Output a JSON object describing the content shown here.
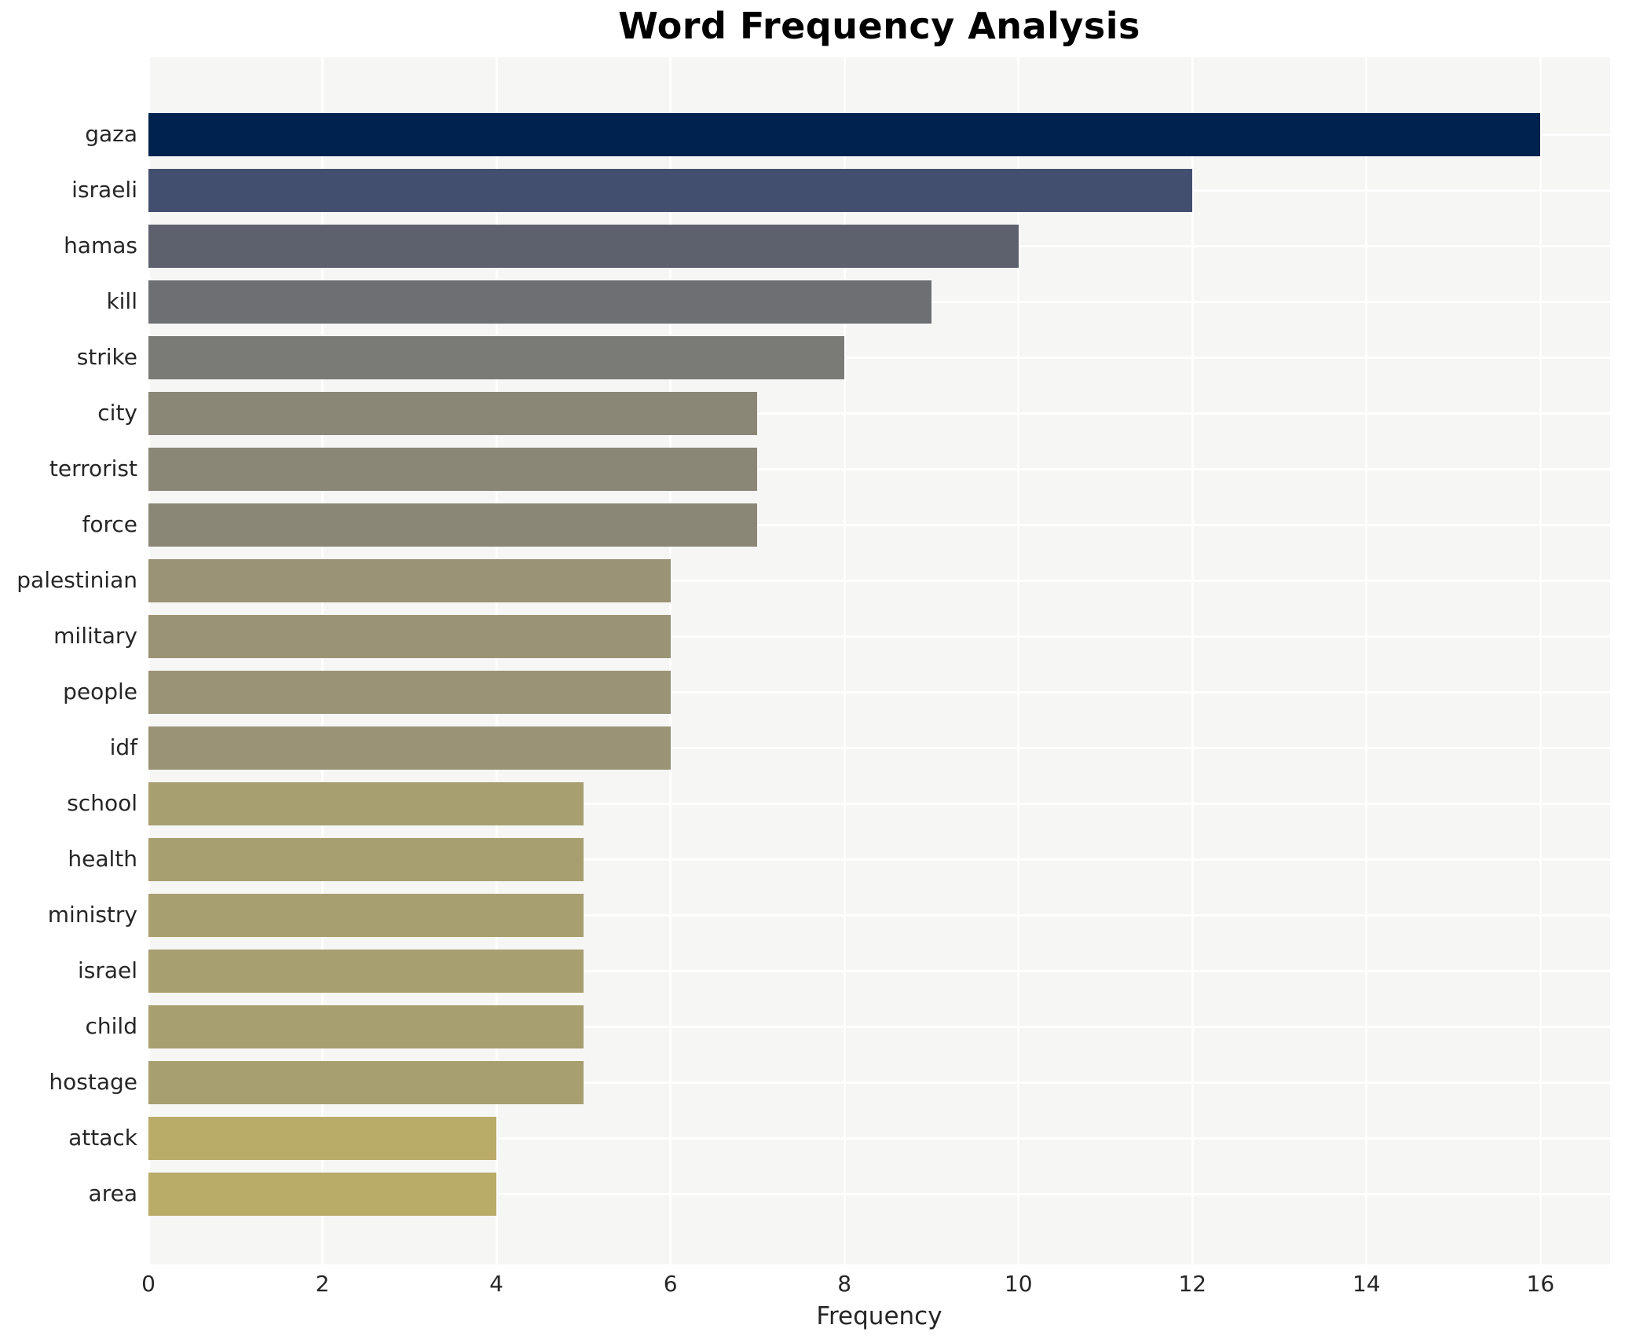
{
  "title": "Word Frequency Analysis",
  "chart_data": {
    "type": "bar",
    "orientation": "horizontal",
    "title": "Word Frequency Analysis",
    "xlabel": "Frequency",
    "ylabel": "",
    "categories": [
      "gaza",
      "israeli",
      "hamas",
      "kill",
      "strike",
      "city",
      "terrorist",
      "force",
      "palestinian",
      "military",
      "people",
      "idf",
      "school",
      "health",
      "ministry",
      "israel",
      "child",
      "hostage",
      "attack",
      "area"
    ],
    "values": [
      16,
      12,
      10,
      9,
      8,
      7,
      7,
      7,
      6,
      6,
      6,
      6,
      5,
      5,
      5,
      5,
      5,
      5,
      4,
      4
    ],
    "bar_colors": [
      "#00224e",
      "#434f6e",
      "#5d616e",
      "#6e6f72",
      "#7a7a76",
      "#8a8777",
      "#8a8777",
      "#8a8777",
      "#9b9375",
      "#9b9375",
      "#9b9375",
      "#9b9375",
      "#a89f71",
      "#a89f71",
      "#a89f71",
      "#a89f71",
      "#a89f71",
      "#a89f71",
      "#b9ac68",
      "#b9ac68"
    ],
    "xlim": [
      0,
      16.8
    ],
    "xticks": [
      0,
      2,
      4,
      6,
      8,
      10,
      12,
      14,
      16
    ],
    "grid": "white gridlines on light gray panel, x and y",
    "legend_position": "none"
  },
  "style": {
    "page_background": "#ffffff",
    "plot_background": "#f6f6f5",
    "grid_color": "#ffffff",
    "text_color": "#262626",
    "title_color": "#000000"
  }
}
